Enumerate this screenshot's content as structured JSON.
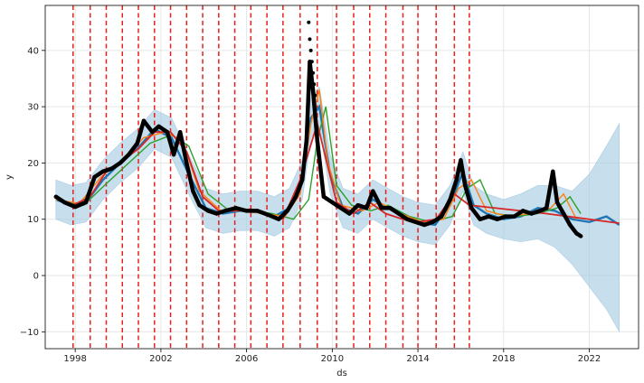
{
  "chart_data": {
    "type": "line",
    "title": "",
    "xlabel": "ds",
    "ylabel": "y",
    "xlim": [
      1996.6,
      2024.3
    ],
    "ylim": [
      -13,
      48
    ],
    "x_ticks": [
      1998,
      2002,
      2006,
      2010,
      2014,
      2018,
      2022
    ],
    "y_ticks": [
      -10,
      0,
      10,
      20,
      30,
      40
    ],
    "grid": true,
    "legend": "none",
    "colors": {
      "observed": "#000000",
      "forecast": "#1f77b4",
      "uncertainty": "#a9cde3",
      "trend": "#d62728",
      "smooth_orange": "#ff7f0e",
      "smooth_green": "#2ca02c",
      "changepoint": "#e8201c"
    },
    "changepoints": [
      1997.9,
      1998.7,
      1999.45,
      2000.2,
      2000.95,
      2001.7,
      2002.45,
      2003.2,
      2003.95,
      2004.7,
      2005.45,
      2006.2,
      2006.95,
      2007.7,
      2008.5,
      2009.3,
      2010.2,
      2011.0,
      2011.75,
      2012.5,
      2013.3,
      2014.0,
      2014.85,
      2015.7,
      2016.4
    ],
    "observed": {
      "x": [
        1997.1,
        1997.5,
        1998.0,
        1998.5,
        1998.9,
        1999.3,
        1999.7,
        2000.1,
        2000.5,
        2000.9,
        2001.2,
        2001.6,
        2001.9,
        2002.3,
        2002.6,
        2002.9,
        2003.2,
        2003.5,
        2003.8,
        2004.2,
        2004.6,
        2005.0,
        2005.5,
        2006.0,
        2006.5,
        2007.0,
        2007.5,
        2007.9,
        2008.3,
        2008.6,
        2008.8,
        2008.95,
        2009.1,
        2009.3,
        2009.6,
        2010.0,
        2010.4,
        2010.8,
        2011.2,
        2011.6,
        2011.9,
        2012.3,
        2012.7,
        2013.1,
        2013.5,
        2013.9,
        2014.3,
        2014.7,
        2015.1,
        2015.5,
        2015.8,
        2016.0,
        2016.2,
        2016.5,
        2016.9,
        2017.3,
        2017.7,
        2018.1,
        2018.5,
        2018.9,
        2019.3,
        2019.7,
        2020.0,
        2020.3,
        2020.5,
        2020.8,
        2021.1,
        2021.4,
        2021.6
      ],
      "y": [
        14.0,
        13.0,
        12.2,
        13.0,
        17.5,
        18.5,
        19.0,
        20.0,
        21.5,
        23.5,
        27.5,
        25.5,
        26.5,
        25.5,
        21.5,
        25.5,
        20.0,
        15.0,
        12.5,
        11.5,
        11.0,
        11.5,
        12.0,
        11.5,
        11.5,
        10.8,
        10.0,
        11.5,
        14.0,
        17.0,
        24.0,
        38.0,
        33.0,
        24.0,
        14.0,
        13.0,
        12.0,
        11.0,
        12.5,
        12.0,
        15.0,
        12.0,
        12.0,
        11.0,
        10.0,
        9.5,
        9.0,
        9.5,
        10.5,
        13.5,
        17.0,
        20.5,
        16.0,
        12.0,
        10.0,
        10.5,
        10.0,
        10.5,
        10.5,
        11.5,
        11.0,
        11.5,
        12.0,
        18.5,
        13.0,
        11.0,
        9.0,
        7.5,
        7.0
      ]
    },
    "forecast": {
      "x": [
        1997.1,
        1997.8,
        1998.5,
        1999.3,
        2000.1,
        2000.9,
        2001.7,
        2002.5,
        2003.3,
        2004.1,
        2004.9,
        2005.7,
        2006.5,
        2007.3,
        2008.0,
        2008.6,
        2009.0,
        2009.4,
        2009.9,
        2010.5,
        2011.2,
        2011.9,
        2012.6,
        2013.3,
        2014.0,
        2014.8,
        2015.5,
        2016.1,
        2016.6,
        2017.2,
        2018.0,
        2018.8,
        2019.6,
        2020.4,
        2021.2,
        2022.0,
        2022.8,
        2023.4
      ],
      "y": [
        13.5,
        12.5,
        13.0,
        17.0,
        20.0,
        22.5,
        26.0,
        24.5,
        18.0,
        12.0,
        11.0,
        11.5,
        11.5,
        10.5,
        12.0,
        17.0,
        28.0,
        30.0,
        18.0,
        12.0,
        11.0,
        13.5,
        12.0,
        10.5,
        9.5,
        9.0,
        12.5,
        18.5,
        12.5,
        11.0,
        10.0,
        10.5,
        12.0,
        11.5,
        10.0,
        9.5,
        10.5,
        9.0
      ]
    },
    "uncertainty_upper": [
      17.0,
      16.0,
      16.5,
      20.5,
      23.5,
      26.0,
      29.5,
      28.0,
      21.5,
      15.5,
      14.5,
      15.0,
      15.0,
      14.0,
      15.5,
      20.5,
      31.5,
      33.5,
      21.5,
      15.5,
      14.5,
      17.0,
      15.5,
      14.0,
      13.0,
      12.5,
      16.0,
      22.0,
      16.0,
      14.5,
      13.5,
      14.5,
      16.0,
      16.0,
      15.0,
      18.0,
      23.0,
      27.0
    ],
    "uncertainty_lower": [
      10.0,
      9.0,
      9.5,
      13.5,
      16.5,
      19.0,
      22.5,
      21.0,
      14.5,
      8.5,
      7.5,
      8.0,
      8.0,
      7.0,
      8.5,
      13.5,
      24.5,
      26.5,
      14.5,
      8.5,
      7.5,
      10.0,
      8.5,
      7.0,
      6.0,
      5.5,
      9.0,
      15.0,
      9.0,
      7.5,
      6.5,
      6.0,
      6.5,
      5.0,
      2.0,
      -2.0,
      -6.0,
      -10.0
    ],
    "trend": {
      "x": [
        1997.1,
        1997.9,
        1998.7,
        1999.45,
        2000.2,
        2000.95,
        2001.7,
        2002.45,
        2003.2,
        2003.95,
        2004.7,
        2005.45,
        2006.2,
        2006.95,
        2007.7,
        2008.5,
        2009.3,
        2010.2,
        2011.0,
        2011.75,
        2012.5,
        2013.3,
        2014.0,
        2014.85,
        2015.7,
        2016.4,
        2020.0,
        2023.4
      ],
      "y": [
        13.8,
        12.5,
        14.0,
        18.5,
        20.5,
        22.5,
        25.5,
        25.5,
        22.0,
        14.0,
        11.5,
        11.5,
        11.8,
        11.0,
        10.0,
        17.0,
        27.0,
        13.0,
        11.0,
        13.0,
        11.0,
        10.0,
        9.5,
        10.0,
        14.5,
        12.5,
        11.0,
        9.3
      ]
    },
    "smooth_orange": {
      "x": [
        1997.1,
        1998.2,
        1999.2,
        2000.2,
        2001.2,
        2002.2,
        2003.0,
        2003.8,
        2004.8,
        2005.8,
        2006.8,
        2007.8,
        2008.5,
        2009.0,
        2009.4,
        2009.8,
        2010.4,
        2011.4,
        2012.2,
        2013.2,
        2014.2,
        2015.2,
        2015.9,
        2016.5,
        2017.2,
        2018.2,
        2019.2,
        2020.2,
        2020.8,
        2021.4
      ],
      "y": [
        13.5,
        12.8,
        17.5,
        20.5,
        24.5,
        25.5,
        24.0,
        15.0,
        11.5,
        11.5,
        11.0,
        10.5,
        14.5,
        27.0,
        33.0,
        20.0,
        12.5,
        11.5,
        13.0,
        11.0,
        9.5,
        10.0,
        15.5,
        17.0,
        11.5,
        10.5,
        11.0,
        12.0,
        14.5,
        10.0
      ]
    },
    "smooth_green": {
      "x": [
        1997.1,
        1998.4,
        1999.5,
        2000.5,
        2001.5,
        2002.5,
        2003.3,
        2004.2,
        2005.2,
        2006.2,
        2007.2,
        2008.2,
        2008.9,
        2009.3,
        2009.7,
        2010.2,
        2010.9,
        2011.8,
        2012.6,
        2013.6,
        2014.6,
        2015.6,
        2016.3,
        2016.9,
        2017.6,
        2018.6,
        2019.6,
        2020.5,
        2021.1,
        2021.6
      ],
      "y": [
        13.5,
        12.5,
        16.5,
        20.0,
        23.5,
        25.0,
        23.0,
        14.5,
        11.5,
        11.5,
        11.0,
        10.0,
        13.5,
        24.0,
        30.0,
        16.0,
        12.5,
        11.5,
        12.5,
        10.5,
        9.5,
        10.5,
        15.5,
        17.0,
        11.0,
        10.5,
        11.0,
        12.0,
        14.0,
        11.0
      ]
    }
  }
}
